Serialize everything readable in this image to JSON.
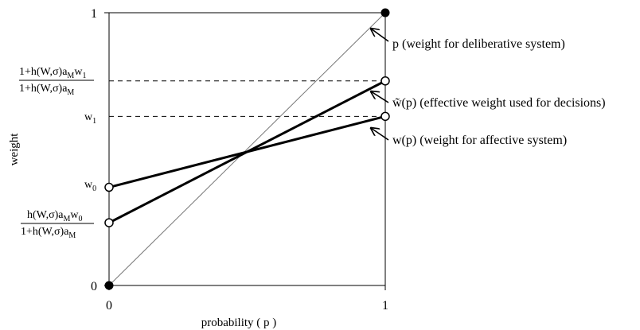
{
  "chart_data": {
    "type": "line",
    "title": "",
    "xlabel": "probability ( p )",
    "ylabel": "weight",
    "xlim": [
      0,
      1
    ],
    "ylim": [
      0,
      1
    ],
    "grid": false,
    "x_tick_labels": [
      "0",
      "1"
    ],
    "y_tick_labels": {
      "bottom": "0",
      "top": "1",
      "w0": {
        "main": "w",
        "sub": "0"
      },
      "w1": {
        "main": "w",
        "sub": "1"
      },
      "frac_low": {
        "numerator": [
          "h(W,σ)a",
          "M",
          "w",
          "0"
        ],
        "denominator": [
          "1+h(W,σ)a",
          "M"
        ]
      },
      "frac_high": {
        "numerator": [
          "1+h(W,σ)a",
          "M",
          "w",
          "1"
        ],
        "denominator": [
          "1+h(W,σ)a",
          "M"
        ]
      }
    },
    "series": [
      {
        "label": "p (weight for deliberative system)",
        "x": [
          0,
          1
        ],
        "y": [
          0,
          1
        ],
        "style": "thin",
        "endpoint_markers": "filled"
      },
      {
        "label": "w̃(p) (effective weight used for decisions)",
        "x": [
          0,
          1
        ],
        "y": [
          0.23,
          0.75
        ],
        "style": "thick",
        "endpoint_markers": "open"
      },
      {
        "label": "w(p) (weight for affective system)",
        "x": [
          0,
          1
        ],
        "y": [
          0.36,
          0.62
        ],
        "style": "thick",
        "endpoint_markers": "open"
      }
    ],
    "reference_lines": [
      {
        "y": 0.75,
        "style": "dashed"
      },
      {
        "y": 0.62,
        "style": "dashed"
      }
    ]
  }
}
